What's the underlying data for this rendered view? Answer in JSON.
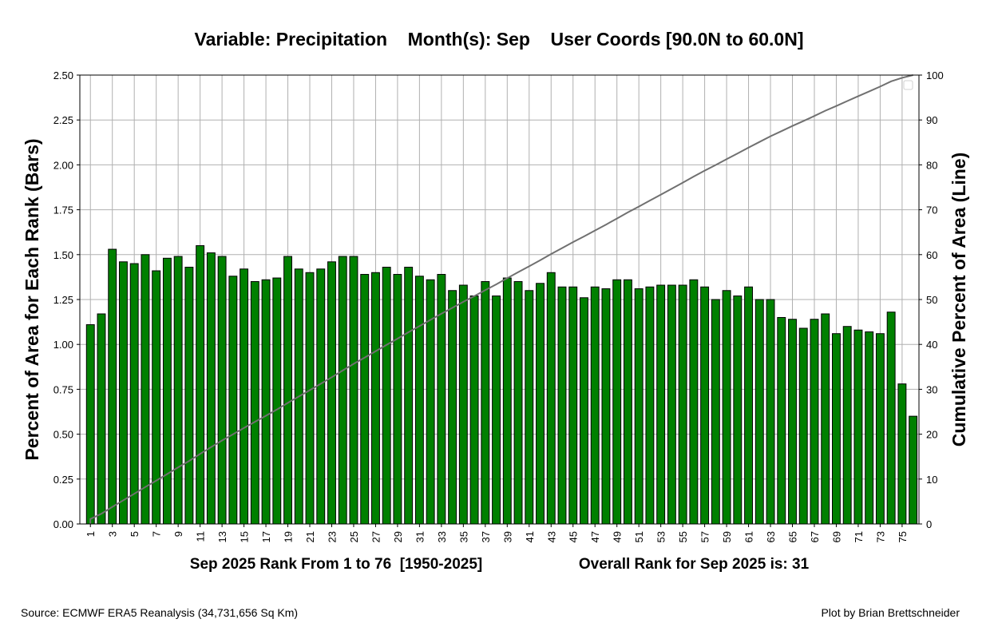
{
  "chart_data": {
    "type": "bar",
    "title": "Variable: Precipitation    Month(s): Sep    User Coords [90.0N to 60.0N]",
    "xlabel_left": "Sep 2025 Rank From 1 to 76  [1950-2025]",
    "xlabel_right": "Overall Rank for Sep 2025 is: 31",
    "ylabel_left": "Percent of Area for Each Rank (Bars)",
    "ylabel_right": "Cumulative Percent of Area (Line)",
    "ylim_left": [
      0,
      2.5
    ],
    "ylim_right": [
      0,
      100
    ],
    "yticks_left": [
      "0.00",
      "0.25",
      "0.50",
      "0.75",
      "1.00",
      "1.25",
      "1.50",
      "1.75",
      "2.00",
      "2.25",
      "2.50"
    ],
    "yticks_right": [
      "0",
      "10",
      "20",
      "30",
      "40",
      "50",
      "60",
      "70",
      "80",
      "90",
      "100"
    ],
    "xticks": [
      "1",
      "3",
      "5",
      "7",
      "9",
      "11",
      "13",
      "15",
      "17",
      "19",
      "21",
      "23",
      "25",
      "27",
      "29",
      "31",
      "33",
      "35",
      "37",
      "39",
      "41",
      "43",
      "45",
      "47",
      "49",
      "51",
      "53",
      "55",
      "57",
      "59",
      "61",
      "63",
      "65",
      "67",
      "69",
      "71",
      "73",
      "75"
    ],
    "grid": true,
    "bar_color": "#008000",
    "line_color": "#707070",
    "categories": [
      1,
      2,
      3,
      4,
      5,
      6,
      7,
      8,
      9,
      10,
      11,
      12,
      13,
      14,
      15,
      16,
      17,
      18,
      19,
      20,
      21,
      22,
      23,
      24,
      25,
      26,
      27,
      28,
      29,
      30,
      31,
      32,
      33,
      34,
      35,
      36,
      37,
      38,
      39,
      40,
      41,
      42,
      43,
      44,
      45,
      46,
      47,
      48,
      49,
      50,
      51,
      52,
      53,
      54,
      55,
      56,
      57,
      58,
      59,
      60,
      61,
      62,
      63,
      64,
      65,
      66,
      67,
      68,
      69,
      70,
      71,
      72,
      73,
      74,
      75,
      76
    ],
    "series": [
      {
        "type": "bar",
        "axis": "left",
        "values": [
          1.11,
          1.17,
          1.53,
          1.46,
          1.45,
          1.5,
          1.41,
          1.48,
          1.49,
          1.43,
          1.55,
          1.51,
          1.49,
          1.38,
          1.42,
          1.35,
          1.36,
          1.37,
          1.49,
          1.42,
          1.4,
          1.42,
          1.46,
          1.49,
          1.49,
          1.39,
          1.4,
          1.43,
          1.39,
          1.43,
          1.38,
          1.36,
          1.39,
          1.3,
          1.33,
          1.27,
          1.35,
          1.27,
          1.37,
          1.35,
          1.3,
          1.34,
          1.4,
          1.32,
          1.32,
          1.26,
          1.32,
          1.31,
          1.36,
          1.36,
          1.31,
          1.32,
          1.33,
          1.33,
          1.33,
          1.36,
          1.32,
          1.25,
          1.3,
          1.27,
          1.32,
          1.25,
          1.25,
          1.15,
          1.14,
          1.09,
          1.14,
          1.17,
          1.06,
          1.1,
          1.08,
          1.07,
          1.06,
          1.18,
          0.78,
          0.6
        ]
      },
      {
        "type": "line",
        "axis": "right",
        "values": "cumulative"
      }
    ]
  },
  "footer": {
    "source": "Source: ECMWF ERA5 Reanalysis (34,731,656 Sq Km)",
    "credit": "Plot by Brian Brettschneider"
  }
}
